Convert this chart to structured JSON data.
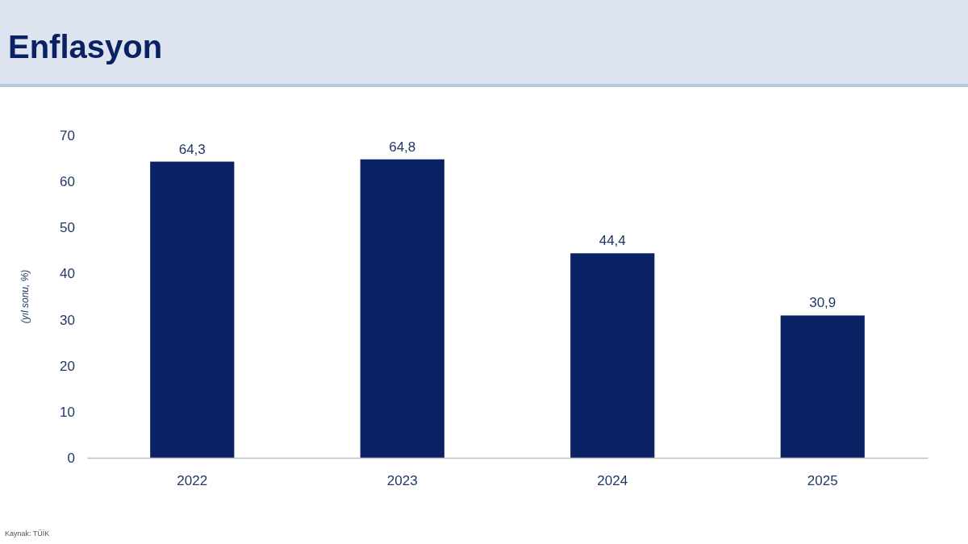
{
  "chart_data": {
    "type": "bar",
    "title": "Enflasyon",
    "ylabel": "(yıl sonu, %)",
    "categories": [
      "2022",
      "2023",
      "2024",
      "2025"
    ],
    "values": [
      64.3,
      64.8,
      44.4,
      30.9
    ],
    "color": "#0a2263",
    "ylim": [
      0,
      70
    ],
    "yticks": [
      0,
      10,
      20,
      30,
      40,
      50,
      60,
      70
    ],
    "grid": false,
    "data_labels": true,
    "value_labels": [
      "64,3",
      "64,8",
      "44,4",
      "30,9"
    ],
    "annotations": [
      "Kaynak: TÜİK"
    ]
  }
}
